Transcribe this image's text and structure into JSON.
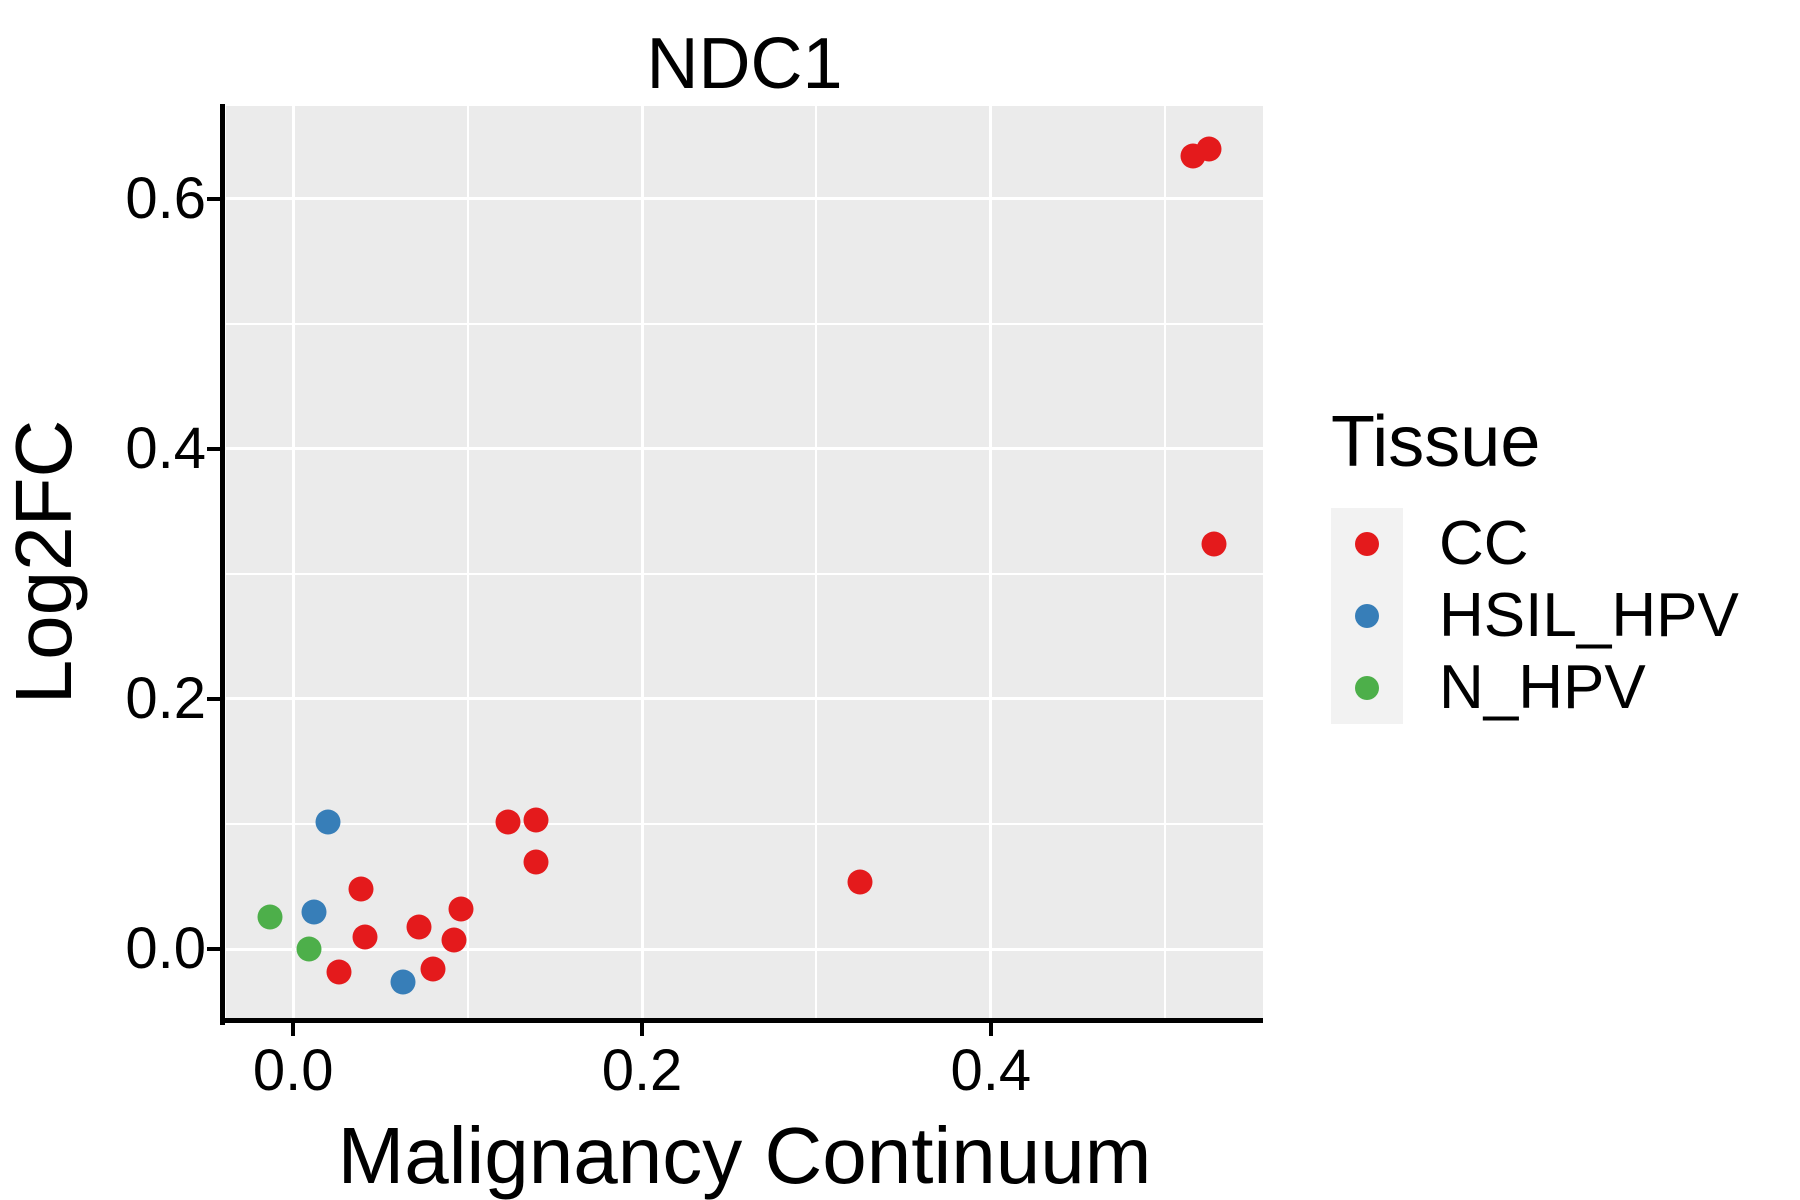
{
  "title": "NDC1",
  "axes": {
    "x_label": "Malignancy Continuum",
    "y_label": "Log2FC",
    "x_tick_labels": [
      "0.0",
      "0.2",
      "0.4"
    ],
    "y_tick_labels": [
      "0.0",
      "0.2",
      "0.4",
      "0.6"
    ]
  },
  "legend": {
    "title": "Tissue",
    "items": [
      {
        "label": "CC",
        "color": "#E41A1C"
      },
      {
        "label": "HSIL_HPV",
        "color": "#377EB8"
      },
      {
        "label": "N_HPV",
        "color": "#4DAF4A"
      }
    ]
  },
  "colors": {
    "panel_background": "#EBEBEB",
    "gridline": "#FFFFFF",
    "legend_key_background": "#F2F2F2",
    "axis_line": "#000000",
    "text": "#000000"
  },
  "chart_data": {
    "type": "scatter",
    "title": "NDC1",
    "xlabel": "Malignancy Continuum",
    "ylabel": "Log2FC",
    "xlim": [
      -0.0385,
      0.556
    ],
    "ylim": [
      -0.055,
      0.674
    ],
    "x_major_ticks": [
      0.0,
      0.2,
      0.4
    ],
    "y_major_ticks": [
      0.0,
      0.2,
      0.4,
      0.6
    ],
    "x_minor_gridlines": [
      0.1,
      0.3,
      0.5
    ],
    "y_minor_gridlines": [
      0.1,
      0.3,
      0.5
    ],
    "grid": "white major and minor gridlines on gray panel",
    "legend_position": "right",
    "legend_title": "Tissue",
    "series": [
      {
        "name": "CC",
        "color": "#E41A1C",
        "points": [
          [
            0.026,
            -0.018
          ],
          [
            0.039,
            0.048
          ],
          [
            0.041,
            0.01
          ],
          [
            0.072,
            0.018
          ],
          [
            0.08,
            -0.016
          ],
          [
            0.092,
            0.007
          ],
          [
            0.096,
            0.032
          ],
          [
            0.123,
            0.102
          ],
          [
            0.139,
            0.103
          ],
          [
            0.139,
            0.07
          ],
          [
            0.325,
            0.054
          ],
          [
            0.528,
            0.324
          ],
          [
            0.516,
            0.634
          ],
          [
            0.525,
            0.64
          ]
        ]
      },
      {
        "name": "HSIL_HPV",
        "color": "#377EB8",
        "points": [
          [
            0.012,
            0.03
          ],
          [
            0.02,
            0.102
          ],
          [
            0.063,
            -0.026
          ]
        ]
      },
      {
        "name": "N_HPV",
        "color": "#4DAF4A",
        "points": [
          [
            -0.013,
            0.026
          ],
          [
            0.009,
            0.0
          ]
        ]
      }
    ]
  }
}
